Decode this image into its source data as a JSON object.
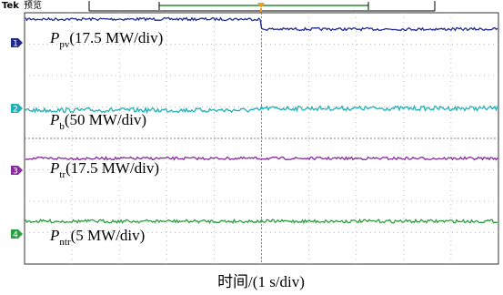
{
  "header": {
    "brand": "Tek",
    "mode": "预览"
  },
  "channels": [
    {
      "marker": "1",
      "symbol": "P",
      "subscript": "pv",
      "scale": "(17.5 MW/div)"
    },
    {
      "marker": "2",
      "symbol": "P",
      "subscript": "b",
      "scale": "(50 MW/div)"
    },
    {
      "marker": "3",
      "symbol": "P",
      "subscript": "tr",
      "scale": "(17.5 MW/div)"
    },
    {
      "marker": "4",
      "symbol": "P",
      "subscript": "ntr",
      "scale": "(5 MW/div)"
    }
  ],
  "x_axis_label": "时间/(1 s/div)"
}
